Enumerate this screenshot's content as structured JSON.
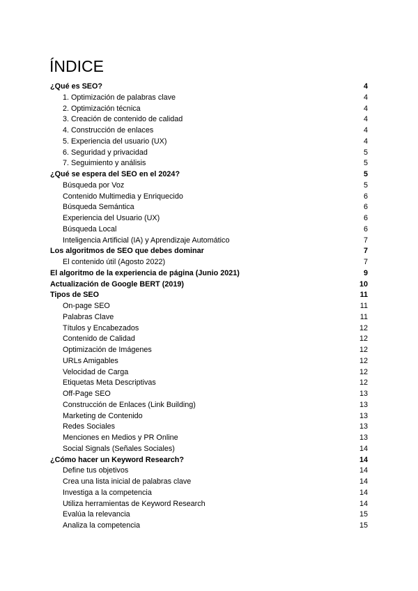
{
  "title": "ÍNDICE",
  "entries": [
    {
      "label": "¿Qué es SEO?",
      "page": "4",
      "level": 1
    },
    {
      "label": "1. Optimización de palabras clave",
      "page": "4",
      "level": 2
    },
    {
      "label": "2. Optimización técnica",
      "page": "4",
      "level": 2
    },
    {
      "label": "3. Creación de contenido de calidad",
      "page": "4",
      "level": 2
    },
    {
      "label": "4. Construcción de enlaces",
      "page": "4",
      "level": 2
    },
    {
      "label": "5. Experiencia del usuario (UX)",
      "page": "4",
      "level": 2
    },
    {
      "label": "6. Seguridad y privacidad",
      "page": "5",
      "level": 2
    },
    {
      "label": "7. Seguimiento y análisis",
      "page": "5",
      "level": 2
    },
    {
      "label": "¿Qué se espera del SEO en el 2024?",
      "page": "5",
      "level": 1
    },
    {
      "label": "Búsqueda por Voz",
      "page": "5",
      "level": 2
    },
    {
      "label": "Contenido Multimedia y Enriquecido",
      "page": "6",
      "level": 2
    },
    {
      "label": "Búsqueda Semántica",
      "page": "6",
      "level": 2
    },
    {
      "label": "Experiencia del Usuario (UX)",
      "page": "6",
      "level": 2
    },
    {
      "label": "Búsqueda Local",
      "page": "6",
      "level": 2
    },
    {
      "label": "Inteligencia Artificial (IA) y Aprendizaje Automático",
      "page": "7",
      "level": 2
    },
    {
      "label": "Los algoritmos de SEO que debes dominar",
      "page": "7",
      "level": 1
    },
    {
      "label": "El contenido útil (Agosto 2022)",
      "page": "7",
      "level": 2
    },
    {
      "label": "El algoritmo de la experiencia de página (Junio 2021)",
      "page": "9",
      "level": 1
    },
    {
      "label": "Actualización de Google BERT (2019)",
      "page": "10",
      "level": 1
    },
    {
      "label": "Tipos de SEO",
      "page": "11",
      "level": 1
    },
    {
      "label": "On-page SEO",
      "page": "11",
      "level": 2
    },
    {
      "label": "Palabras Clave",
      "page": "11",
      "level": 2
    },
    {
      "label": "Títulos y Encabezados",
      "page": "12",
      "level": 2
    },
    {
      "label": "Contenido de Calidad",
      "page": "12",
      "level": 2
    },
    {
      "label": "Optimización de Imágenes",
      "page": "12",
      "level": 2
    },
    {
      "label": "URLs Amigables",
      "page": "12",
      "level": 2
    },
    {
      "label": "Velocidad de Carga",
      "page": "12",
      "level": 2
    },
    {
      "label": "Etiquetas Meta Descriptivas",
      "page": "12",
      "level": 2
    },
    {
      "label": "Off-Page SEO",
      "page": "13",
      "level": 2
    },
    {
      "label": "Construcción de Enlaces (Link Building)",
      "page": "13",
      "level": 2
    },
    {
      "label": "Marketing de Contenido",
      "page": "13",
      "level": 2
    },
    {
      "label": "Redes Sociales",
      "page": "13",
      "level": 2
    },
    {
      "label": "Menciones en Medios y PR Online",
      "page": "13",
      "level": 2
    },
    {
      "label": "Social Signals (Señales Sociales)",
      "page": "14",
      "level": 2
    },
    {
      "label": "¿Cómo hacer un Keyword Research?",
      "page": "14",
      "level": 1
    },
    {
      "label": "Define tus objetivos",
      "page": "14",
      "level": 2
    },
    {
      "label": "Crea una lista inicial de palabras clave",
      "page": "14",
      "level": 2
    },
    {
      "label": "Investiga a la competencia",
      "page": "14",
      "level": 2
    },
    {
      "label": "Utiliza herramientas de Keyword Research",
      "page": "14",
      "level": 2
    },
    {
      "label": "Evalúa la relevancia",
      "page": "15",
      "level": 2
    },
    {
      "label": "Analiza la competencia",
      "page": "15",
      "level": 2
    }
  ]
}
